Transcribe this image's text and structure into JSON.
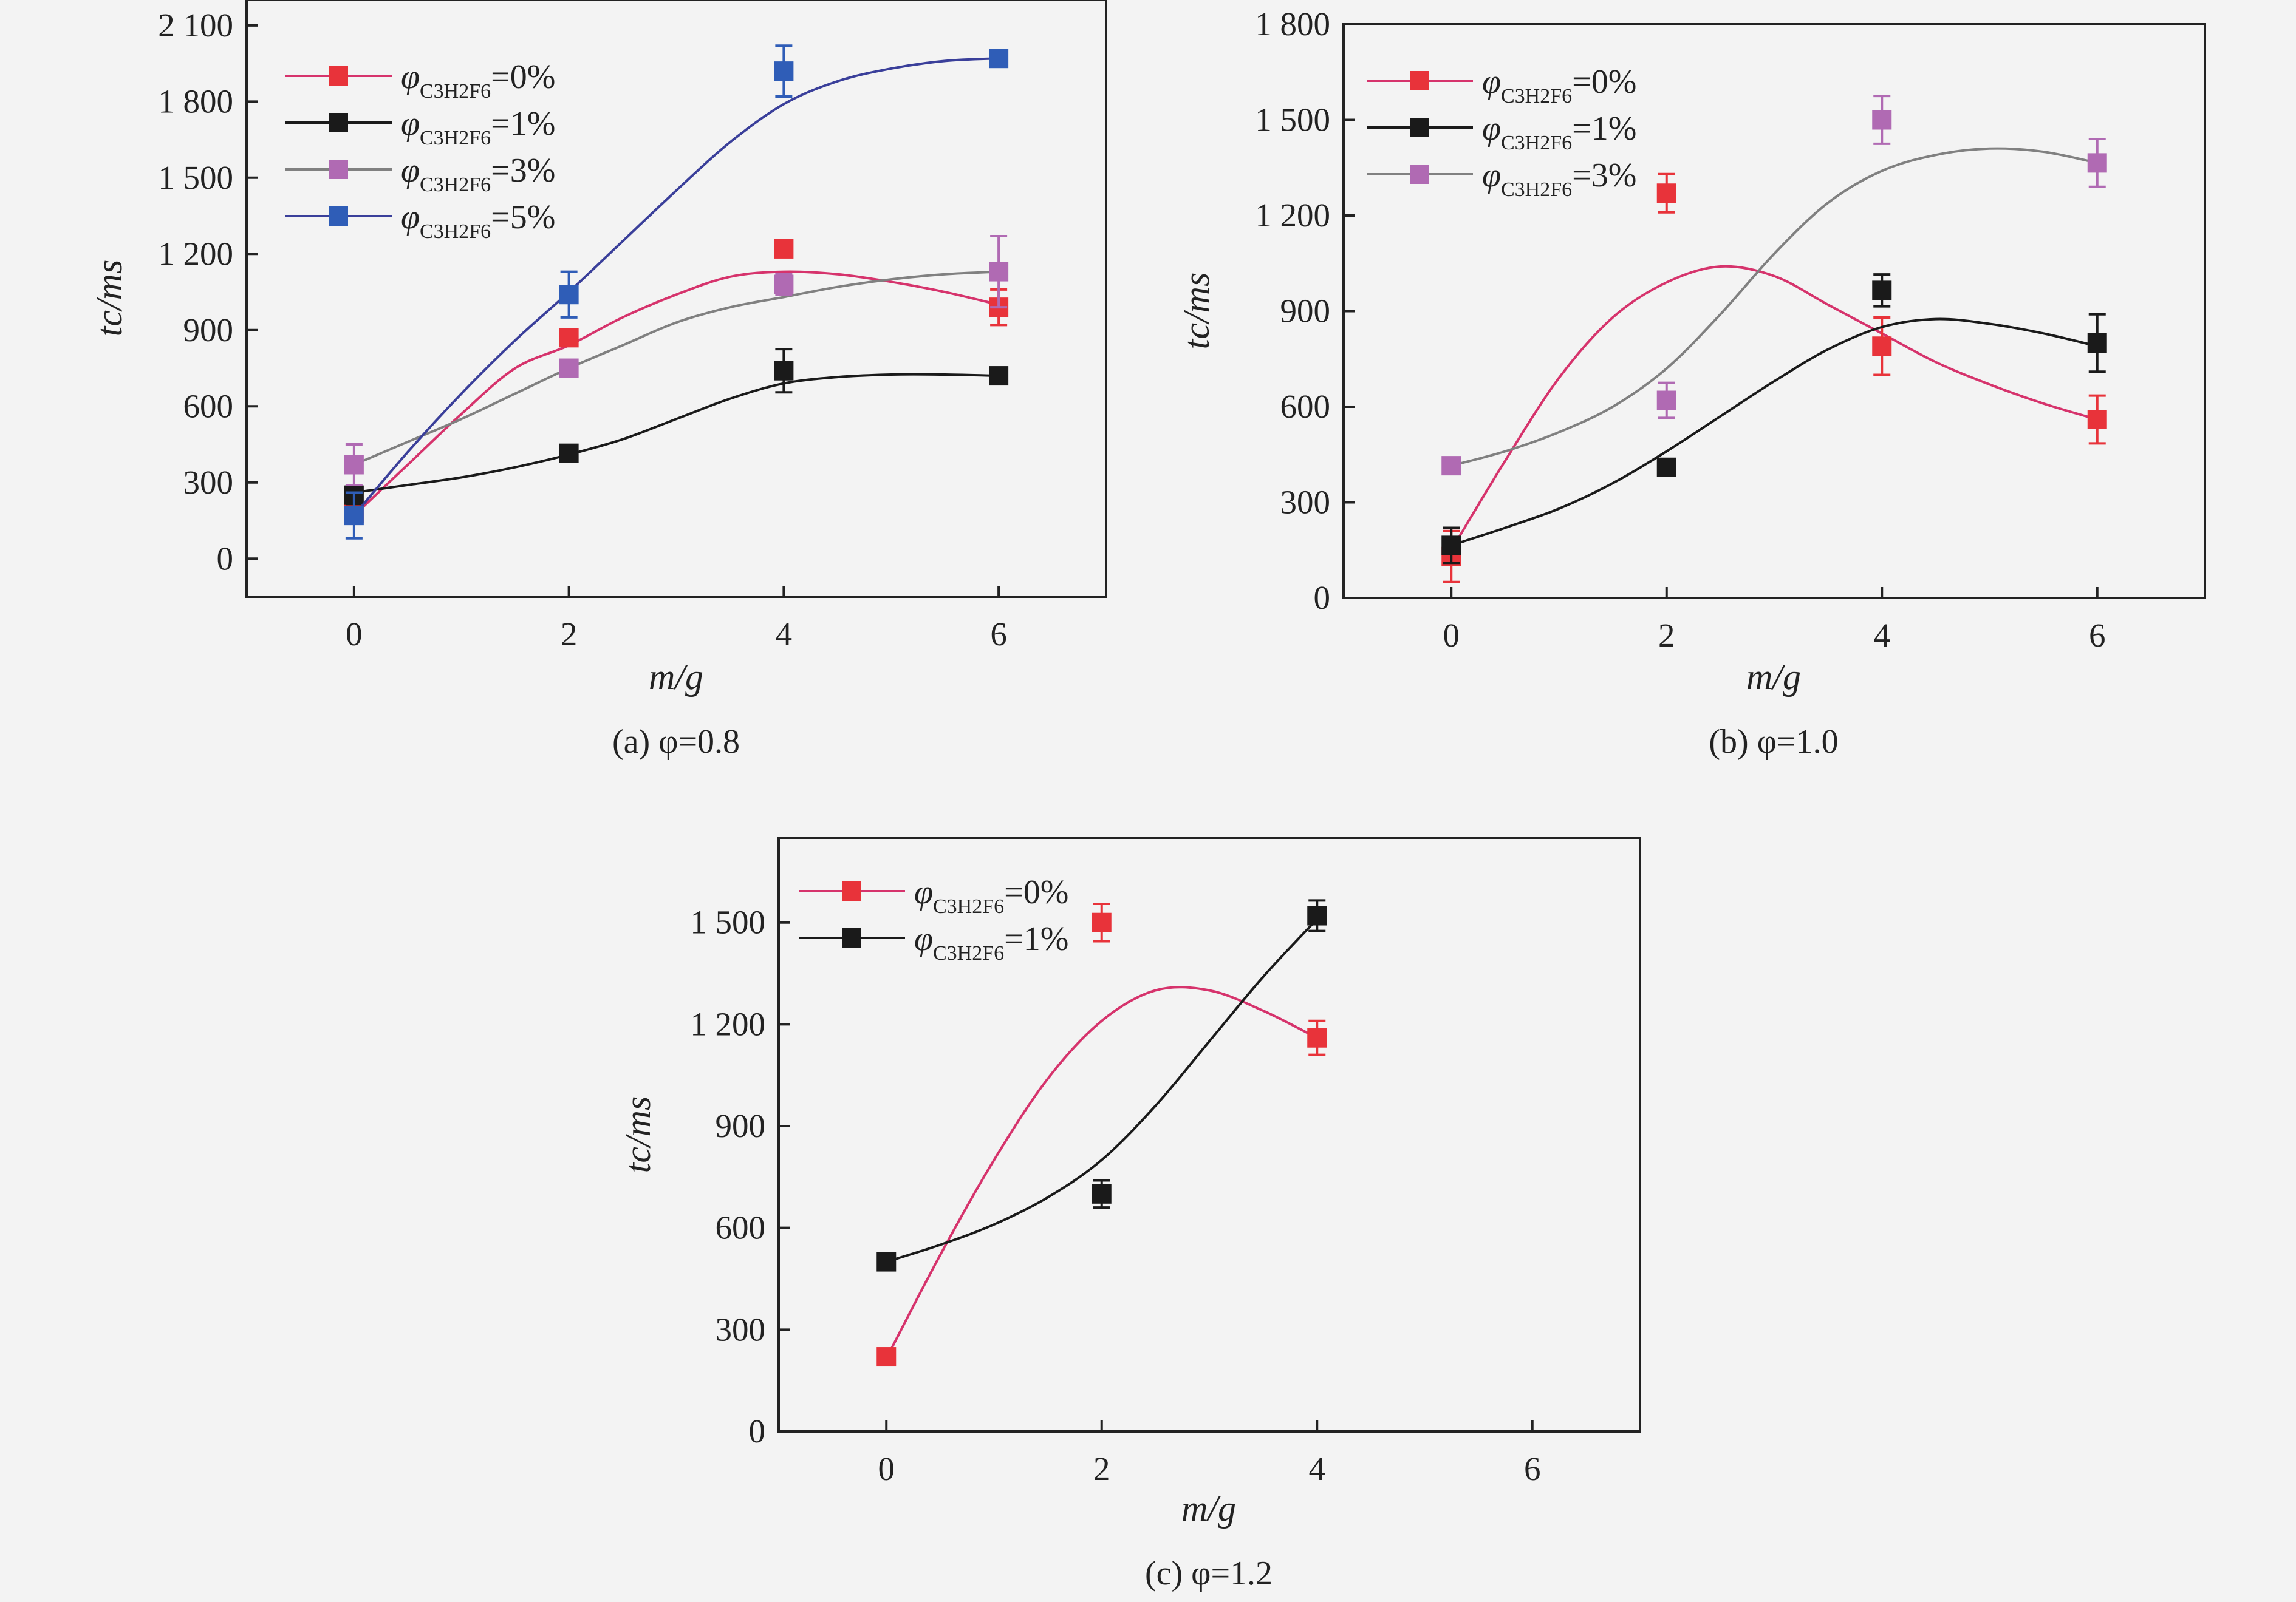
{
  "chart_data": [
    {
      "type": "scatter",
      "caption": "(a) φ=0.8",
      "xlabel": "m/g",
      "ylabel": "tc/ms",
      "xlim": [
        -1,
        7
      ],
      "ylim": [
        -150,
        2200
      ],
      "xticks": [
        0,
        2,
        4,
        6
      ],
      "xtick_labels": [
        "0",
        "2",
        "4",
        "6"
      ],
      "yticks": [
        0,
        300,
        600,
        900,
        1200,
        1500,
        1800,
        2100
      ],
      "ytick_labels": [
        "0",
        "300",
        "600",
        "900",
        "1 200",
        "1 500",
        "1 800",
        "2 100"
      ],
      "series": [
        {
          "name": "φC3H2F6=0%",
          "legend_prefix": "φ",
          "legend_sub": "C3H2F6",
          "legend_value": "=0%",
          "marker_color": "#e8333a",
          "line_color": "#d6336c",
          "x": [
            0,
            2,
            4,
            6
          ],
          "y": [
            180,
            870,
            1220,
            990
          ],
          "err": [
            40,
            30,
            25,
            70
          ],
          "fit": [
            [
              0,
              170
            ],
            [
              0.5,
              370
            ],
            [
              1,
              570
            ],
            [
              1.5,
              750
            ],
            [
              2,
              840
            ],
            [
              2.5,
              950
            ],
            [
              3,
              1040
            ],
            [
              3.5,
              1110
            ],
            [
              4,
              1130
            ],
            [
              4.5,
              1120
            ],
            [
              5,
              1090
            ],
            [
              5.5,
              1050
            ],
            [
              6,
              1000
            ]
          ]
        },
        {
          "name": "φC3H2F6=1%",
          "legend_prefix": "φ",
          "legend_sub": "C3H2F6",
          "legend_value": "=1%",
          "marker_color": "#1a1a1a",
          "line_color": "#1a1a1a",
          "x": [
            0,
            2,
            4,
            6
          ],
          "y": [
            250,
            415,
            740,
            720
          ],
          "err": [
            35,
            25,
            85,
            30
          ],
          "fit": [
            [
              0,
              260
            ],
            [
              0.5,
              290
            ],
            [
              1,
              320
            ],
            [
              1.5,
              360
            ],
            [
              2,
              410
            ],
            [
              2.5,
              470
            ],
            [
              3,
              550
            ],
            [
              3.5,
              630
            ],
            [
              4,
              690
            ],
            [
              4.5,
              715
            ],
            [
              5,
              725
            ],
            [
              5.5,
              725
            ],
            [
              6,
              720
            ]
          ]
        },
        {
          "name": "φC3H2F6=3%",
          "legend_prefix": "φ",
          "legend_sub": "C3H2F6",
          "legend_value": "=3%",
          "marker_color": "#b06ab3",
          "line_color": "#808080",
          "x": [
            0,
            2,
            4,
            6
          ],
          "y": [
            370,
            750,
            1080,
            1130
          ],
          "err": [
            80,
            30,
            40,
            140
          ],
          "fit": [
            [
              0,
              370
            ],
            [
              0.5,
              460
            ],
            [
              1,
              550
            ],
            [
              1.5,
              650
            ],
            [
              2,
              750
            ],
            [
              2.5,
              840
            ],
            [
              3,
              930
            ],
            [
              3.5,
              990
            ],
            [
              4,
              1030
            ],
            [
              4.5,
              1070
            ],
            [
              5,
              1100
            ],
            [
              5.5,
              1120
            ],
            [
              6,
              1130
            ]
          ]
        },
        {
          "name": "φC3H2F6=5%",
          "legend_prefix": "φ",
          "legend_sub": "C3H2F6",
          "legend_value": "=5%",
          "marker_color": "#2f5db7",
          "line_color": "#3a3f9a",
          "x": [
            0,
            2,
            4,
            6
          ],
          "y": [
            170,
            1040,
            1920,
            1970
          ],
          "err": [
            90,
            90,
            100,
            15
          ],
          "fit": [
            [
              0,
              170
            ],
            [
              0.5,
              420
            ],
            [
              1,
              650
            ],
            [
              1.5,
              860
            ],
            [
              2,
              1050
            ],
            [
              2.5,
              1250
            ],
            [
              3,
              1450
            ],
            [
              3.5,
              1640
            ],
            [
              4,
              1790
            ],
            [
              4.5,
              1880
            ],
            [
              5,
              1930
            ],
            [
              5.5,
              1960
            ],
            [
              6,
              1970
            ]
          ]
        }
      ]
    },
    {
      "type": "scatter",
      "caption": "(b) φ=1.0",
      "xlabel": "m/g",
      "ylabel": "tc/ms",
      "xlim": [
        -1,
        7
      ],
      "ylim": [
        0,
        1800
      ],
      "xticks": [
        0,
        2,
        4,
        6
      ],
      "xtick_labels": [
        "0",
        "2",
        "4",
        "6"
      ],
      "yticks": [
        0,
        300,
        600,
        900,
        1200,
        1500,
        1800
      ],
      "ytick_labels": [
        "0",
        "300",
        "600",
        "900",
        "1 200",
        "1 500",
        "1 800"
      ],
      "series": [
        {
          "name": "φC3H2F6=0%",
          "legend_prefix": "φ",
          "legend_sub": "C3H2F6",
          "legend_value": "=0%",
          "marker_color": "#e8333a",
          "line_color": "#d6336c",
          "x": [
            0,
            2,
            4,
            6
          ],
          "y": [
            130,
            1270,
            790,
            560
          ],
          "err": [
            80,
            60,
            90,
            75
          ],
          "fit": [
            [
              0,
              150
            ],
            [
              0.5,
              430
            ],
            [
              1,
              690
            ],
            [
              1.5,
              880
            ],
            [
              2,
              990
            ],
            [
              2.5,
              1040
            ],
            [
              3,
              1010
            ],
            [
              3.5,
              920
            ],
            [
              4,
              830
            ],
            [
              4.5,
              740
            ],
            [
              5,
              670
            ],
            [
              5.5,
              610
            ],
            [
              6,
              560
            ]
          ]
        },
        {
          "name": "φC3H2F6=1%",
          "legend_prefix": "φ",
          "legend_sub": "C3H2F6",
          "legend_value": "=1%",
          "marker_color": "#1a1a1a",
          "line_color": "#1a1a1a",
          "x": [
            0,
            2,
            4,
            6
          ],
          "y": [
            165,
            410,
            965,
            800
          ],
          "err": [
            55,
            25,
            50,
            90
          ],
          "fit": [
            [
              0,
              165
            ],
            [
              0.5,
              220
            ],
            [
              1,
              280
            ],
            [
              1.5,
              360
            ],
            [
              2,
              460
            ],
            [
              2.5,
              570
            ],
            [
              3,
              680
            ],
            [
              3.5,
              780
            ],
            [
              4,
              850
            ],
            [
              4.5,
              875
            ],
            [
              5,
              860
            ],
            [
              5.5,
              830
            ],
            [
              6,
              790
            ]
          ]
        },
        {
          "name": "φC3H2F6=3%",
          "legend_prefix": "φ",
          "legend_sub": "C3H2F6",
          "legend_value": "=3%",
          "marker_color": "#b06ab3",
          "line_color": "#808080",
          "x": [
            0,
            2,
            4,
            6
          ],
          "y": [
            415,
            620,
            1500,
            1365
          ],
          "err": [
            15,
            55,
            75,
            75
          ],
          "fit": [
            [
              0,
              415
            ],
            [
              0.5,
              460
            ],
            [
              1,
              520
            ],
            [
              1.5,
              600
            ],
            [
              2,
              720
            ],
            [
              2.5,
              890
            ],
            [
              3,
              1080
            ],
            [
              3.5,
              1240
            ],
            [
              4,
              1340
            ],
            [
              4.5,
              1390
            ],
            [
              5,
              1410
            ],
            [
              5.5,
              1400
            ],
            [
              6,
              1365
            ]
          ]
        }
      ]
    },
    {
      "type": "scatter",
      "caption": "(c) φ=1.2",
      "xlabel": "m/g",
      "ylabel": "tc/ms",
      "xlim": [
        -1,
        7
      ],
      "ylim": [
        0,
        1750
      ],
      "xticks": [
        0,
        2,
        4,
        6
      ],
      "xtick_labels": [
        "0",
        "2",
        "4",
        "6"
      ],
      "yticks": [
        0,
        300,
        600,
        900,
        1200,
        1500
      ],
      "ytick_labels": [
        "0",
        "300",
        "600",
        "900",
        "1 200",
        "1 500"
      ],
      "series": [
        {
          "name": "φC3H2F6=0%",
          "legend_prefix": "φ",
          "legend_sub": "C3H2F6",
          "legend_value": "=0%",
          "marker_color": "#e8333a",
          "line_color": "#d6336c",
          "x": [
            0,
            2,
            4
          ],
          "y": [
            220,
            1500,
            1160
          ],
          "err": [
            15,
            55,
            50
          ],
          "fit": [
            [
              0,
              215
            ],
            [
              0.5,
              520
            ],
            [
              1,
              800
            ],
            [
              1.5,
              1040
            ],
            [
              2,
              1210
            ],
            [
              2.5,
              1300
            ],
            [
              3,
              1300
            ],
            [
              3.5,
              1240
            ],
            [
              4,
              1160
            ]
          ]
        },
        {
          "name": "φC3H2F6=1%",
          "legend_prefix": "φ",
          "legend_sub": "C3H2F6",
          "legend_value": "=1%",
          "marker_color": "#1a1a1a",
          "line_color": "#1a1a1a",
          "x": [
            0,
            2,
            4
          ],
          "y": [
            500,
            700,
            1520
          ],
          "err": [
            20,
            40,
            45
          ],
          "fit": [
            [
              0,
              500
            ],
            [
              0.5,
              550
            ],
            [
              1,
              610
            ],
            [
              1.5,
              690
            ],
            [
              2,
              800
            ],
            [
              2.5,
              960
            ],
            [
              3,
              1150
            ],
            [
              3.5,
              1340
            ],
            [
              4,
              1510
            ]
          ]
        }
      ]
    }
  ]
}
